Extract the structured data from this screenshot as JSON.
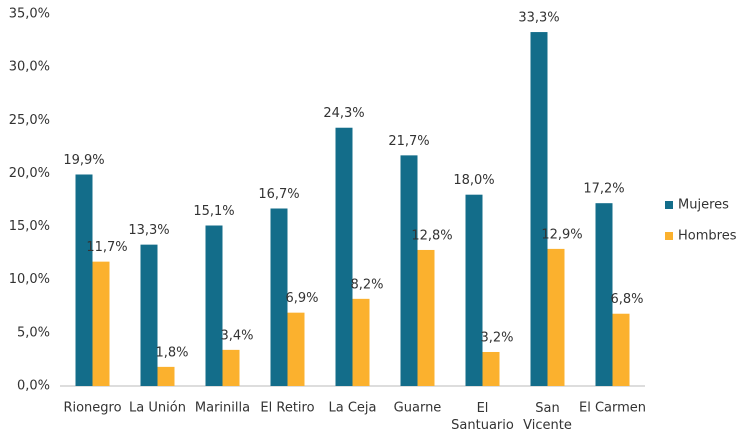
{
  "chart_data": {
    "type": "bar",
    "categories": [
      "Rionegro",
      "La Unión",
      "Marinilla",
      "El Retiro",
      "La Ceja",
      "Guarne",
      "El Santuario",
      "San Vicente",
      "El Carmen"
    ],
    "series": [
      {
        "name": "Mujeres",
        "color": "#136d8a",
        "values": [
          19.9,
          13.3,
          15.1,
          16.7,
          24.3,
          21.7,
          18.0,
          33.3,
          17.2
        ],
        "value_labels": [
          "19,9%",
          "13,3%",
          "15,1%",
          "16,7%",
          "24,3%",
          "21,7%",
          "18,0%",
          "33,3%",
          "17,2%"
        ]
      },
      {
        "name": "Hombres",
        "color": "#fbb12e",
        "values": [
          11.7,
          1.8,
          3.4,
          6.9,
          8.2,
          12.8,
          3.2,
          12.9,
          6.8
        ],
        "value_labels": [
          "11,7%",
          "1,8%",
          "3,4%",
          "6,9%",
          "8,2%",
          "12,8%",
          "3,2%",
          "12,9%",
          "6,8%"
        ]
      }
    ],
    "ylim": [
      0,
      35
    ],
    "yticks": [
      {
        "value": 0,
        "label": "0,0%"
      },
      {
        "value": 5,
        "label": "5,0%"
      },
      {
        "value": 10,
        "label": "10,0%"
      },
      {
        "value": 15,
        "label": "15,0%"
      },
      {
        "value": 20,
        "label": "20,0%"
      },
      {
        "value": 25,
        "label": "25,0%"
      },
      {
        "value": 30,
        "label": "30,0%"
      },
      {
        "value": 35,
        "label": "35,0%"
      }
    ],
    "grid": false,
    "legend": "right"
  }
}
